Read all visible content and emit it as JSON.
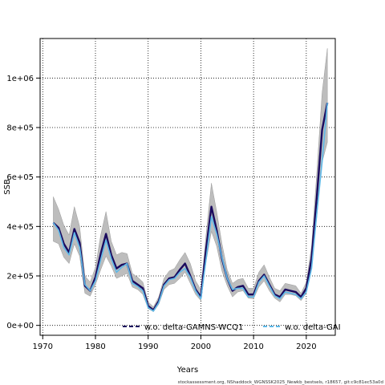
{
  "chart_data": {
    "type": "line",
    "xlabel": "Years",
    "ylabel": "SSB",
    "xlim": [
      1969.5,
      2025.5
    ],
    "ylim": [
      -40000,
      1160000
    ],
    "x_ticks": [
      1970,
      1980,
      1990,
      2000,
      2010,
      2020
    ],
    "y_ticks": [
      0,
      200000,
      400000,
      600000,
      800000,
      1000000
    ],
    "y_tick_labels": [
      "0e+00",
      "2e+05",
      "4e+05",
      "6e+05",
      "8e+05",
      "1e+06"
    ],
    "grid": true,
    "legend_position": "bottom",
    "footer": "stockassessment.org, NShaddock_WGNSSK2025_Newkb_bestsels, r18657, git:c9c81ec53a0d",
    "x": [
      1972,
      1973,
      1974,
      1975,
      1976,
      1977,
      1978,
      1979,
      1980,
      1981,
      1982,
      1983,
      1984,
      1985,
      1986,
      1987,
      1988,
      1989,
      1990,
      1991,
      1992,
      1993,
      1994,
      1995,
      1996,
      1997,
      1998,
      1999,
      2000,
      2001,
      2002,
      2003,
      2004,
      2005,
      2006,
      2007,
      2008,
      2009,
      2010,
      2011,
      2012,
      2013,
      2014,
      2015,
      2016,
      2017,
      2018,
      2019,
      2020,
      2021,
      2022,
      2023,
      2024
    ],
    "band": {
      "lower": [
        340000,
        330000,
        275000,
        250000,
        330000,
        280000,
        130000,
        118000,
        165000,
        225000,
        280000,
        240000,
        190000,
        200000,
        210000,
        155000,
        145000,
        125000,
        68000,
        55000,
        85000,
        145000,
        165000,
        170000,
        190000,
        215000,
        170000,
        125000,
        100000,
        260000,
        380000,
        320000,
        220000,
        160000,
        115000,
        135000,
        140000,
        110000,
        108000,
        155000,
        180000,
        140000,
        110000,
        95000,
        125000,
        125000,
        120000,
        100000,
        130000,
        230000,
        440000,
        660000,
        740000
      ],
      "upper": [
        520000,
        470000,
        405000,
        365000,
        480000,
        400000,
        200000,
        175000,
        235000,
        365000,
        460000,
        340000,
        285000,
        295000,
        290000,
        210000,
        195000,
        175000,
        95000,
        75000,
        115000,
        190000,
        220000,
        230000,
        265000,
        295000,
        250000,
        180000,
        145000,
        370000,
        575000,
        460000,
        330000,
        225000,
        170000,
        185000,
        190000,
        150000,
        150000,
        215000,
        245000,
        195000,
        150000,
        140000,
        170000,
        165000,
        160000,
        130000,
        175000,
        320000,
        620000,
        940000,
        1120000
      ]
    },
    "series": [
      {
        "name": "w.o. delta-GAMNS-WCQ1",
        "color": "#1a0a5e",
        "values": [
          415000,
          395000,
          330000,
          295000,
          390000,
          335000,
          160000,
          140000,
          195000,
          290000,
          370000,
          285000,
          230000,
          245000,
          250000,
          180000,
          165000,
          150000,
          78000,
          62000,
          98000,
          165000,
          190000,
          195000,
          225000,
          250000,
          200000,
          145000,
          115000,
          310000,
          480000,
          385000,
          270000,
          190000,
          140000,
          155000,
          160000,
          125000,
          125000,
          180000,
          205000,
          165000,
          125000,
          115000,
          145000,
          140000,
          135000,
          115000,
          150000,
          270000,
          520000,
          790000,
          900000
        ]
      },
      {
        "name": "w.o. delta-GAI",
        "color": "#5db8e8",
        "values": [
          415000,
          385000,
          315000,
          285000,
          375000,
          315000,
          165000,
          140000,
          180000,
          265000,
          345000,
          270000,
          215000,
          235000,
          250000,
          170000,
          158000,
          140000,
          72000,
          58000,
          92000,
          160000,
          185000,
          190000,
          215000,
          230000,
          195000,
          140000,
          108000,
          270000,
          440000,
          370000,
          275000,
          190000,
          145000,
          150000,
          150000,
          115000,
          115000,
          175000,
          200000,
          160000,
          120000,
          108000,
          135000,
          130000,
          125000,
          108000,
          135000,
          230000,
          455000,
          660000,
          900000
        ]
      }
    ]
  }
}
